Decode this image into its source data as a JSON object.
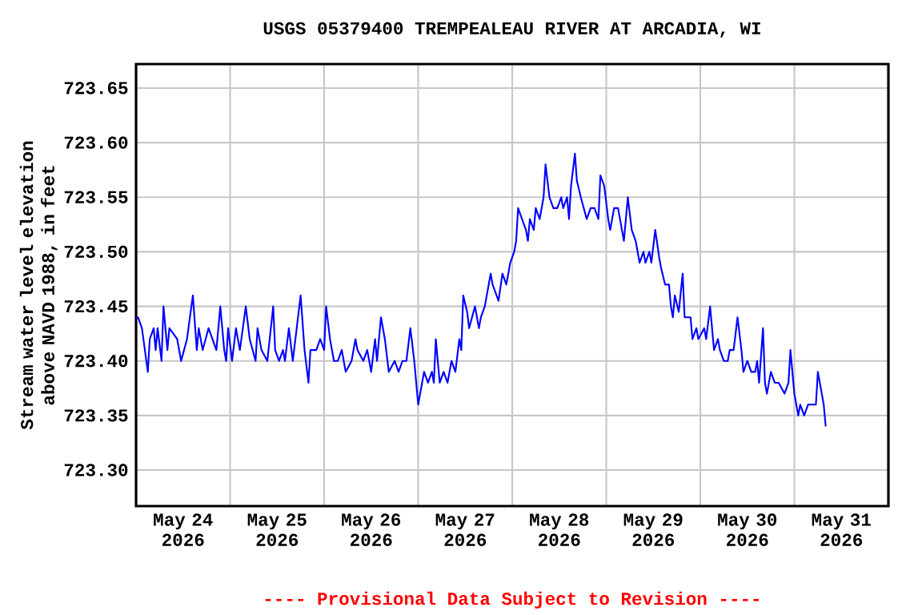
{
  "chart_data": {
    "type": "line",
    "title": "USGS 05379400 TREMPEALEAU RIVER AT ARCADIA, WI",
    "ylabel": "Stream water level elevation above NAVD 1988, in feet",
    "annotations": [
      "---- Provisional Data Subject to Revision ----"
    ],
    "grid": true,
    "xlim": [
      "2026-05-24T00:00",
      "2026-06-01T00:00"
    ],
    "ylim": [
      723.267,
      723.672
    ],
    "yticks": [
      {
        "value": 723.3,
        "label": "723.30"
      },
      {
        "value": 723.35,
        "label": "723.35"
      },
      {
        "value": 723.4,
        "label": "723.40"
      },
      {
        "value": 723.45,
        "label": "723.45"
      },
      {
        "value": 723.5,
        "label": "723.50"
      },
      {
        "value": 723.55,
        "label": "723.55"
      },
      {
        "value": 723.6,
        "label": "723.60"
      },
      {
        "value": 723.65,
        "label": "723.65"
      }
    ],
    "xticks": [
      {
        "value": "2026-05-24T12:00",
        "label": "May 24 2026"
      },
      {
        "value": "2026-05-25T00:00",
        "label": null
      },
      {
        "value": "2026-05-25T12:00",
        "label": "May 25 2026"
      },
      {
        "value": "2026-05-26T00:00",
        "label": null
      },
      {
        "value": "2026-05-26T12:00",
        "label": "May 26 2026"
      },
      {
        "value": "2026-05-27T00:00",
        "label": null
      },
      {
        "value": "2026-05-27T12:00",
        "label": "May 27 2026"
      },
      {
        "value": "2026-05-28T00:00",
        "label": null
      },
      {
        "value": "2026-05-28T12:00",
        "label": "May 28 2026"
      },
      {
        "value": "2026-05-29T00:00",
        "label": null
      },
      {
        "value": "2026-05-29T12:00",
        "label": "May 29 2026"
      },
      {
        "value": "2026-05-30T00:00",
        "label": null
      },
      {
        "value": "2026-05-30T12:00",
        "label": "May 30 2026"
      },
      {
        "value": "2026-05-31T00:00",
        "label": null
      },
      {
        "value": "2026-05-31T12:00",
        "label": "May 31 2026"
      }
    ],
    "series": [
      {
        "color": "#0000ff",
        "x": [
          "2026-05-24T00:00",
          "2026-05-24T00:30",
          "2026-05-24T01:30",
          "2026-05-24T03:00",
          "2026-05-24T03:30",
          "2026-05-24T04:30",
          "2026-05-24T05:00",
          "2026-05-24T05:30",
          "2026-05-24T06:30",
          "2026-05-24T07:00",
          "2026-05-24T08:00",
          "2026-05-24T08:30",
          "2026-05-24T10:30",
          "2026-05-24T11:30",
          "2026-05-24T13:00",
          "2026-05-24T14:30",
          "2026-05-24T15:30",
          "2026-05-24T16:00",
          "2026-05-24T17:00",
          "2026-05-24T18:30",
          "2026-05-24T19:30",
          "2026-05-24T20:30",
          "2026-05-24T21:30",
          "2026-05-24T22:30",
          "2026-05-24T23:00",
          "2026-05-24T23:30",
          "2026-05-25T00:30",
          "2026-05-25T01:30",
          "2026-05-25T02:30",
          "2026-05-25T04:00",
          "2026-05-25T05:00",
          "2026-05-25T06:30",
          "2026-05-25T07:00",
          "2026-05-25T08:00",
          "2026-05-25T09:30",
          "2026-05-25T11:00",
          "2026-05-25T11:30",
          "2026-05-25T12:30",
          "2026-05-25T13:30",
          "2026-05-25T14:00",
          "2026-05-25T15:00",
          "2026-05-25T16:00",
          "2026-05-25T17:00",
          "2026-05-25T18:00",
          "2026-05-25T19:00",
          "2026-05-25T20:00",
          "2026-05-25T20:30",
          "2026-05-25T22:00",
          "2026-05-25T23:00",
          "2026-05-26T00:00",
          "2026-05-26T00:30",
          "2026-05-26T01:30",
          "2026-05-26T02:30",
          "2026-05-26T03:30",
          "2026-05-26T04:30",
          "2026-05-26T05:30",
          "2026-05-26T07:00",
          "2026-05-26T08:00",
          "2026-05-26T08:30",
          "2026-05-26T10:00",
          "2026-05-26T11:00",
          "2026-05-26T12:00",
          "2026-05-26T13:00",
          "2026-05-26T13:30",
          "2026-05-26T14:30",
          "2026-05-26T15:30",
          "2026-05-26T16:30",
          "2026-05-26T18:00",
          "2026-05-26T19:00",
          "2026-05-26T20:00",
          "2026-05-26T21:00",
          "2026-05-26T22:00",
          "2026-05-26T23:00",
          "2026-05-27T00:00",
          "2026-05-27T01:00",
          "2026-05-27T01:30",
          "2026-05-27T02:30",
          "2026-05-27T03:30",
          "2026-05-27T04:00",
          "2026-05-27T04:30",
          "2026-05-27T05:30",
          "2026-05-27T06:30",
          "2026-05-27T07:30",
          "2026-05-27T08:30",
          "2026-05-27T09:30",
          "2026-05-27T10:30",
          "2026-05-27T11:00",
          "2026-05-27T11:30",
          "2026-05-27T12:30",
          "2026-05-27T13:00",
          "2026-05-27T14:30",
          "2026-05-27T15:30",
          "2026-05-27T16:00",
          "2026-05-27T17:00",
          "2026-05-27T18:30",
          "2026-05-27T19:00",
          "2026-05-27T20:30",
          "2026-05-27T21:30",
          "2026-05-27T22:30",
          "2026-05-27T23:30",
          "2026-05-28T00:30",
          "2026-05-28T01:00",
          "2026-05-28T01:30",
          "2026-05-28T02:30",
          "2026-05-28T03:30",
          "2026-05-28T04:00",
          "2026-05-28T04:30",
          "2026-05-28T05:30",
          "2026-05-28T06:00",
          "2026-05-28T07:00",
          "2026-05-28T08:00",
          "2026-05-28T08:30",
          "2026-05-28T09:30",
          "2026-05-28T10:30",
          "2026-05-28T11:30",
          "2026-05-28T12:30",
          "2026-05-28T13:00",
          "2026-05-28T14:00",
          "2026-05-28T14:30",
          "2026-05-28T15:00",
          "2026-05-28T16:00",
          "2026-05-28T16:30",
          "2026-05-28T17:30",
          "2026-05-28T19:00",
          "2026-05-28T20:00",
          "2026-05-28T21:00",
          "2026-05-28T22:00",
          "2026-05-28T22:30",
          "2026-05-28T23:30",
          "2026-05-29T00:30",
          "2026-05-29T01:00",
          "2026-05-29T02:00",
          "2026-05-29T03:00",
          "2026-05-29T04:00",
          "2026-05-29T04:30",
          "2026-05-29T05:30",
          "2026-05-29T06:30",
          "2026-05-29T07:30",
          "2026-05-29T08:30",
          "2026-05-29T09:30",
          "2026-05-29T10:00",
          "2026-05-29T11:00",
          "2026-05-29T11:30",
          "2026-05-29T12:30",
          "2026-05-29T13:30",
          "2026-05-29T14:00",
          "2026-05-29T15:00",
          "2026-05-29T16:00",
          "2026-05-29T16:30",
          "2026-05-29T17:00",
          "2026-05-29T17:30",
          "2026-05-29T18:30",
          "2026-05-29T19:30",
          "2026-05-29T20:00",
          "2026-05-29T21:30",
          "2026-05-29T22:00",
          "2026-05-29T23:00",
          "2026-05-29T23:30",
          "2026-05-30T01:00",
          "2026-05-30T01:30",
          "2026-05-30T02:30",
          "2026-05-30T03:00",
          "2026-05-30T03:30",
          "2026-05-30T04:30",
          "2026-05-30T05:00",
          "2026-05-30T06:00",
          "2026-05-30T07:00",
          "2026-05-30T07:30",
          "2026-05-30T08:30",
          "2026-05-30T09:30",
          "2026-05-30T10:30",
          "2026-05-30T11:00",
          "2026-05-30T12:00",
          "2026-05-30T13:00",
          "2026-05-30T14:00",
          "2026-05-30T14:30",
          "2026-05-30T15:00",
          "2026-05-30T16:00",
          "2026-05-30T16:30",
          "2026-05-30T17:00",
          "2026-05-30T18:00",
          "2026-05-30T19:00",
          "2026-05-30T20:00",
          "2026-05-30T21:30",
          "2026-05-30T22:30",
          "2026-05-30T23:00",
          "2026-05-31T00:00",
          "2026-05-31T01:00",
          "2026-05-31T01:30",
          "2026-05-31T02:30",
          "2026-05-31T03:30",
          "2026-05-31T04:30",
          "2026-05-31T05:30",
          "2026-05-31T06:00",
          "2026-05-31T07:00",
          "2026-05-31T07:30",
          "2026-05-31T08:00"
        ],
        "values": [
          723.44,
          723.44,
          723.43,
          723.39,
          723.42,
          723.43,
          723.41,
          723.43,
          723.4,
          723.45,
          723.41,
          723.43,
          723.42,
          723.4,
          723.42,
          723.46,
          723.41,
          723.43,
          723.41,
          723.43,
          723.42,
          723.41,
          723.45,
          723.41,
          723.4,
          723.43,
          723.4,
          723.43,
          723.41,
          723.45,
          723.42,
          723.4,
          723.43,
          723.41,
          723.4,
          723.45,
          723.41,
          723.4,
          723.41,
          723.4,
          723.43,
          723.4,
          723.43,
          723.46,
          723.41,
          723.38,
          723.41,
          723.41,
          723.42,
          723.41,
          723.45,
          723.42,
          723.4,
          723.4,
          723.41,
          723.39,
          723.4,
          723.42,
          723.41,
          723.4,
          723.41,
          723.39,
          723.42,
          723.4,
          723.44,
          723.42,
          723.39,
          723.4,
          723.39,
          723.4,
          723.4,
          723.43,
          723.4,
          723.36,
          723.38,
          723.39,
          723.38,
          723.39,
          723.38,
          723.42,
          723.38,
          723.39,
          723.38,
          723.4,
          723.39,
          723.42,
          723.41,
          723.46,
          723.445,
          723.43,
          723.45,
          723.43,
          723.44,
          723.45,
          723.48,
          723.47,
          723.455,
          723.48,
          723.47,
          723.49,
          723.5,
          723.51,
          723.54,
          723.53,
          723.52,
          723.51,
          723.53,
          723.52,
          723.54,
          723.53,
          723.55,
          723.58,
          723.55,
          723.54,
          723.54,
          723.55,
          723.54,
          723.55,
          723.53,
          723.56,
          723.59,
          723.565,
          723.55,
          723.53,
          723.54,
          723.54,
          723.53,
          723.57,
          723.56,
          723.53,
          723.52,
          723.54,
          723.54,
          723.52,
          723.51,
          723.55,
          723.52,
          723.51,
          723.49,
          723.5,
          723.49,
          723.5,
          723.49,
          723.52,
          723.495,
          723.485,
          723.47,
          723.47,
          723.45,
          723.44,
          723.46,
          723.445,
          723.48,
          723.44,
          723.44,
          723.42,
          723.43,
          723.42,
          723.43,
          723.42,
          723.45,
          723.43,
          723.41,
          723.42,
          723.41,
          723.4,
          723.4,
          723.41,
          723.41,
          723.44,
          723.41,
          723.39,
          723.4,
          723.39,
          723.39,
          723.4,
          723.38,
          723.43,
          723.38,
          723.37,
          723.39,
          723.38,
          723.38,
          723.37,
          723.38,
          723.41,
          723.37,
          723.35,
          723.36,
          723.35,
          723.36,
          723.36,
          723.36,
          723.39,
          723.37,
          723.36,
          723.34
        ]
      }
    ]
  }
}
